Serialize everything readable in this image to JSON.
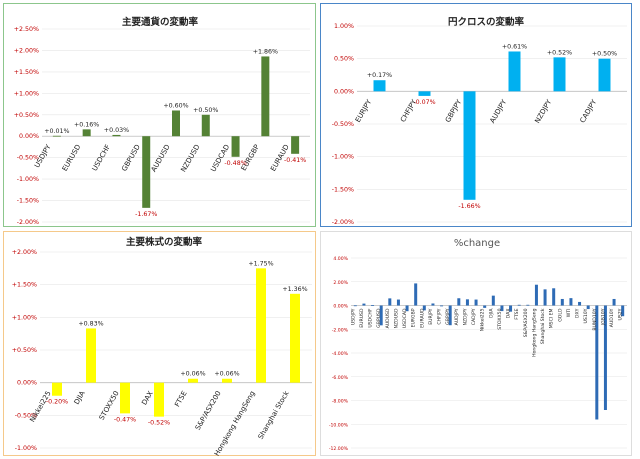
{
  "chart_data": [
    {
      "type": "bar",
      "title": "主要通貨の変動率",
      "categories": [
        "USDJPY",
        "EURUSD",
        "USDCHF",
        "GBPUSD",
        "AUDUSD",
        "NZDUSD",
        "USDCAD",
        "EURGBP",
        "EURAUD"
      ],
      "values": [
        0.01,
        0.16,
        0.03,
        -1.67,
        0.6,
        0.5,
        -0.48,
        1.86,
        -0.41
      ],
      "data_labels": [
        "+0.01%",
        "+0.16%",
        "+0.03%",
        "-1.67%",
        "+0.60%",
        "+0.50%",
        "-0.48%",
        "+1.86%",
        "-0.41%"
      ],
      "yticks": [
        "+2.50%",
        "+2.00%",
        "+1.50%",
        "+1.00%",
        "+0.50%",
        "0.00%",
        "-0.50%",
        "-1.00%",
        "-1.50%",
        "-2.00%"
      ],
      "ylim": [
        -2.0,
        2.5
      ],
      "color": "#548235"
    },
    {
      "type": "bar",
      "title": "円クロスの変動率",
      "categories": [
        "EURJPY",
        "CHFJPY",
        "GBPJPY",
        "AUDJPY",
        "NZDJPY",
        "CADJPY"
      ],
      "values": [
        0.17,
        -0.07,
        -1.66,
        0.61,
        0.52,
        0.5
      ],
      "data_labels": [
        "+0.17%",
        "-0.07%",
        "-1.66%",
        "+0.61%",
        "+0.52%",
        "+0.50%"
      ],
      "yticks": [
        "1.00%",
        "0.50%",
        "0.00%",
        "-0.50%",
        "-1.00%",
        "-1.50%",
        "-2.00%"
      ],
      "ylim": [
        -2.0,
        1.0
      ],
      "color": "#00b0f0"
    },
    {
      "type": "bar",
      "title": "主要株式の変動率",
      "categories": [
        "Nikkei225",
        "DJIA",
        "STOXX50",
        "DAX",
        "FTSE",
        "S&P/ASX200",
        "Hongkong HangSeng",
        "Shanghai Stock"
      ],
      "values": [
        -0.2,
        0.83,
        -0.47,
        -0.52,
        0.06,
        0.06,
        1.75,
        1.36
      ],
      "data_labels": [
        "-0.20%",
        "+0.83%",
        "-0.47%",
        "-0.52%",
        "+0.06%",
        "+0.06%",
        "+1.75%",
        "+1.36%"
      ],
      "yticks": [
        "+2.00%",
        "+1.50%",
        "+1.00%",
        "+0.50%",
        "0.00%",
        "-0.50%",
        "-1.00%"
      ],
      "ylim": [
        -1.0,
        2.0
      ],
      "color": "#ffff00"
    },
    {
      "type": "bar",
      "title": "%change",
      "categories": [
        "USDJPY",
        "EURUSD",
        "USDCHF",
        "GBPUSD",
        "AUDUSD",
        "NZDUSD",
        "USDCAD",
        "EURGBP",
        "EURAUD",
        "EURJPY",
        "CHFJPY",
        "GBPJPY",
        "AUDJPY",
        "NZDJPY",
        "CADJPY",
        "Nikkei225",
        "DJIA",
        "STOXX50",
        "DAX",
        "FTSE",
        "S&P/ASX200",
        "Hongkong HangSeng",
        "Shanghai Stock",
        "MSCI EM",
        "GOLD",
        "WTI",
        "DXY",
        "US10Y",
        "BUND10Y",
        "JGB10Y",
        "AUD10Y",
        "US2Y"
      ],
      "values": [
        0.01,
        0.16,
        0.03,
        -1.67,
        0.6,
        0.5,
        -0.48,
        1.86,
        -0.41,
        0.17,
        -0.07,
        -1.66,
        0.61,
        0.52,
        0.5,
        -0.2,
        0.83,
        -0.47,
        -0.52,
        0.06,
        0.06,
        1.75,
        1.36,
        1.45,
        0.55,
        0.62,
        0.3,
        -0.3,
        -9.6,
        -8.8,
        0.55,
        -0.9
      ],
      "yticks": [
        "4.00%",
        "2.00%",
        "0.00%",
        "-2.00%",
        "-4.00%",
        "-6.00%",
        "-8.00%",
        "-10.00%",
        "-12.00%"
      ],
      "ylim": [
        -12.0,
        4.0
      ],
      "color": "#2e6bb5"
    }
  ]
}
